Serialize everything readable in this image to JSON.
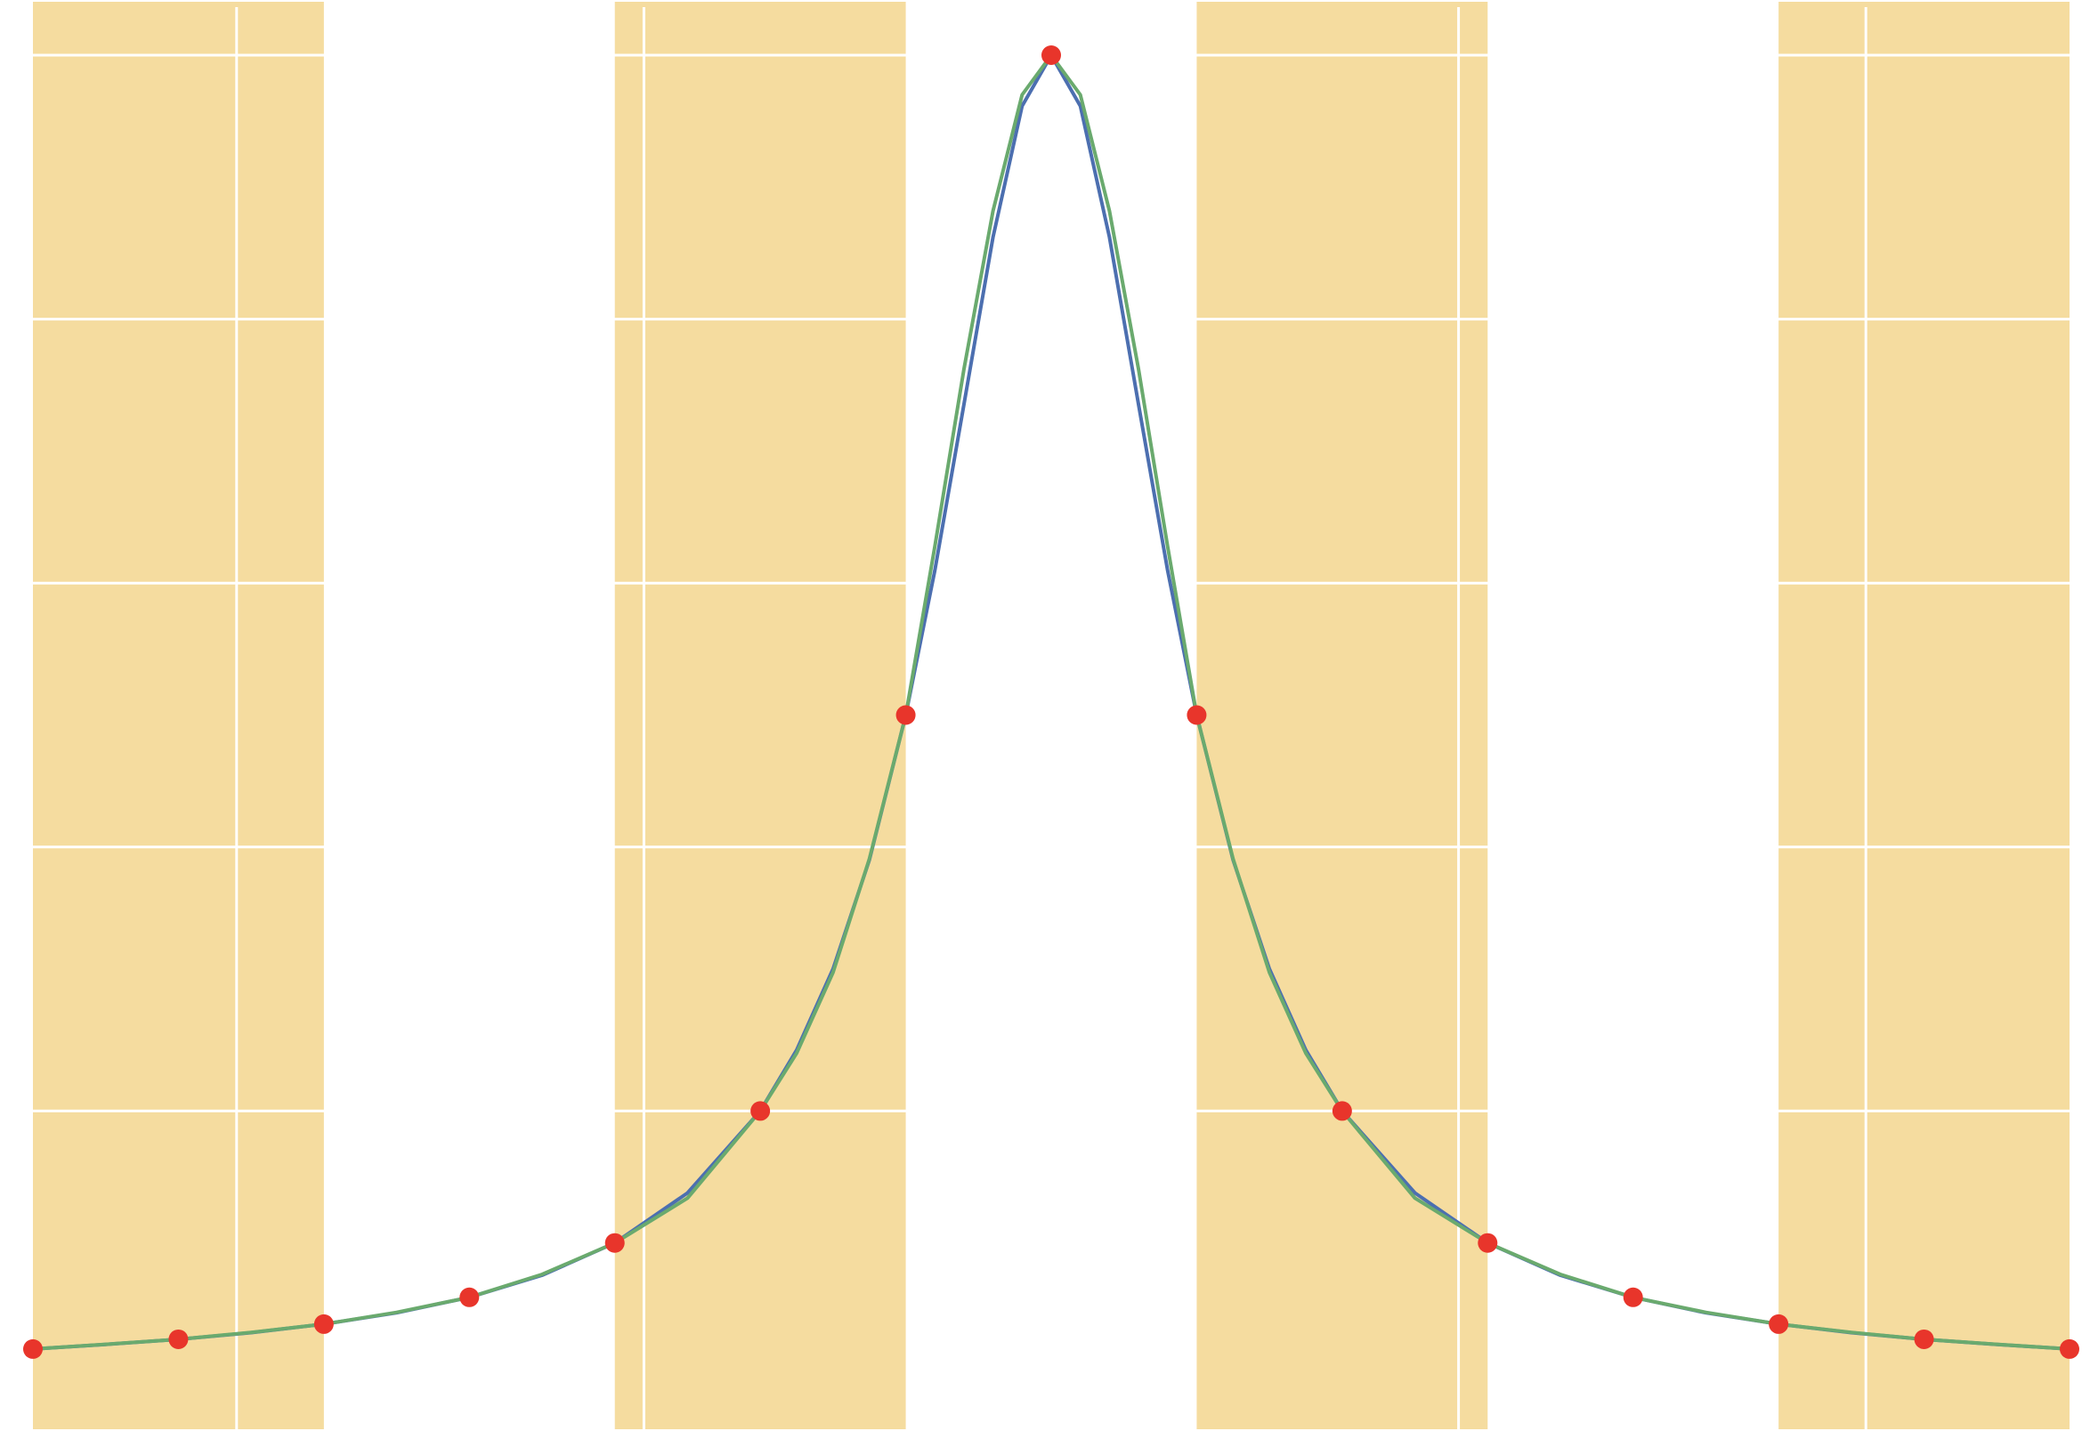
{
  "chart_data": {
    "type": "line",
    "title": "",
    "xlabel": "",
    "ylabel": "",
    "xlim": [
      -7.0,
      7.0
    ],
    "ylim": [
      0.0,
      1.0
    ],
    "grid": true,
    "legend": "none",
    "x_gridlines": [
      -5.6,
      -2.8,
      2.8,
      5.6
    ],
    "y_gridlines": [
      0.2,
      0.4,
      0.6,
      0.8,
      1.0
    ],
    "shaded_bands": [
      [
        -7.0,
        -5.0
      ],
      [
        -3.0,
        -1.0
      ],
      [
        1.0,
        3.0
      ],
      [
        5.0,
        7.0
      ]
    ],
    "points": {
      "x": [
        -7,
        -6,
        -5,
        -4,
        -3,
        -2,
        -1,
        0,
        1,
        2,
        3,
        4,
        5,
        6,
        7
      ],
      "y": [
        0.0196,
        0.027,
        0.0385,
        0.0588,
        0.1,
        0.2,
        0.5,
        1.0,
        0.5,
        0.2,
        0.1,
        0.0588,
        0.0385,
        0.027,
        0.0196
      ],
      "color": "#e8352b"
    },
    "series": [
      {
        "curve": "function",
        "color": "#4c6fb0",
        "x": [
          -7,
          -6.5,
          -6,
          -5.5,
          -5,
          -4.5,
          -4,
          -3.5,
          -3,
          -2.5,
          -2,
          -1.75,
          -1.5,
          -1.25,
          -1,
          -0.8,
          -0.6,
          -0.4,
          -0.2,
          0,
          0.2,
          0.4,
          0.6,
          0.8,
          1,
          1.25,
          1.5,
          1.75,
          2,
          2.5,
          3,
          3.5,
          4,
          4.5,
          5,
          5.5,
          6,
          6.5,
          7
        ],
        "y": [
          0.0196,
          0.0231,
          0.027,
          0.032,
          0.0385,
          0.0471,
          0.0588,
          0.0755,
          0.1,
          0.1379,
          0.2,
          0.2462,
          0.3077,
          0.3902,
          0.5,
          0.6098,
          0.7353,
          0.8621,
          0.9615,
          1.0,
          0.9615,
          0.8621,
          0.7353,
          0.6098,
          0.5,
          0.3902,
          0.3077,
          0.2462,
          0.2,
          0.1379,
          0.1,
          0.0755,
          0.0588,
          0.0471,
          0.0385,
          0.032,
          0.027,
          0.0231,
          0.0196
        ]
      },
      {
        "curve": "interpolant",
        "color": "#6aaa6e",
        "x": [
          -7,
          -6.5,
          -6,
          -5.5,
          -5,
          -4.5,
          -4,
          -3.5,
          -3,
          -2.5,
          -2,
          -1.75,
          -1.5,
          -1.25,
          -1,
          -0.8,
          -0.6,
          -0.4,
          -0.2,
          0,
          0.2,
          0.4,
          0.6,
          0.8,
          1,
          1.25,
          1.5,
          1.75,
          2,
          2.5,
          3,
          3.5,
          4,
          4.5,
          5,
          5.5,
          6,
          6.5,
          7
        ],
        "y": [
          0.0196,
          0.0232,
          0.027,
          0.0322,
          0.0385,
          0.0474,
          0.0588,
          0.0762,
          0.1,
          0.134,
          0.2,
          0.2438,
          0.305,
          0.391,
          0.5,
          0.628,
          0.762,
          0.882,
          0.97,
          1.0,
          0.97,
          0.882,
          0.762,
          0.628,
          0.5,
          0.391,
          0.305,
          0.2438,
          0.2,
          0.134,
          0.1,
          0.0762,
          0.0588,
          0.0474,
          0.0385,
          0.0322,
          0.027,
          0.0232,
          0.0196
        ]
      }
    ]
  },
  "colors": {
    "background": "#ffffff",
    "band": "#f5dc9f",
    "grid": "#ffffff"
  }
}
